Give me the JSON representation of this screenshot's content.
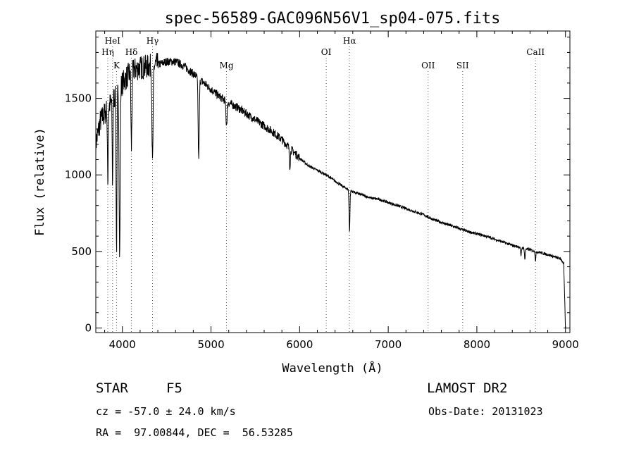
{
  "chart_data": {
    "type": "line",
    "title": "spec-56589-GAC096N56V1_sp04-075.fits",
    "xlabel": "Wavelength (Å)",
    "ylabel": "Flux (relative)",
    "xlim": [
      3700,
      9050
    ],
    "ylim": [
      -30,
      1940
    ],
    "x_ticks": [
      4000,
      5000,
      6000,
      7000,
      8000,
      9000
    ],
    "y_ticks": [
      0,
      500,
      1000,
      1500
    ],
    "continuum": [
      [
        3700,
        1200
      ],
      [
        3750,
        1350
      ],
      [
        3800,
        1400
      ],
      [
        3850,
        1450
      ],
      [
        3900,
        1500
      ],
      [
        4000,
        1600
      ],
      [
        4100,
        1680
      ],
      [
        4200,
        1700
      ],
      [
        4300,
        1710
      ],
      [
        4400,
        1720
      ],
      [
        4500,
        1740
      ],
      [
        4600,
        1740
      ],
      [
        4700,
        1710
      ],
      [
        4800,
        1660
      ],
      [
        4900,
        1610
      ],
      [
        5000,
        1560
      ],
      [
        5100,
        1510
      ],
      [
        5200,
        1470
      ],
      [
        5300,
        1440
      ],
      [
        5400,
        1400
      ],
      [
        5500,
        1360
      ],
      [
        5600,
        1320
      ],
      [
        5700,
        1280
      ],
      [
        5800,
        1230
      ],
      [
        5900,
        1170
      ],
      [
        6000,
        1110
      ],
      [
        6100,
        1060
      ],
      [
        6200,
        1030
      ],
      [
        6300,
        1000
      ],
      [
        6400,
        960
      ],
      [
        6500,
        920
      ],
      [
        6600,
        890
      ],
      [
        6700,
        870
      ],
      [
        6800,
        850
      ],
      [
        6900,
        840
      ],
      [
        7000,
        820
      ],
      [
        7100,
        800
      ],
      [
        7200,
        780
      ],
      [
        7300,
        760
      ],
      [
        7400,
        740
      ],
      [
        7500,
        710
      ],
      [
        7600,
        690
      ],
      [
        7700,
        670
      ],
      [
        7800,
        650
      ],
      [
        7900,
        630
      ],
      [
        8000,
        615
      ],
      [
        8100,
        600
      ],
      [
        8200,
        580
      ],
      [
        8300,
        560
      ],
      [
        8400,
        540
      ],
      [
        8500,
        525
      ],
      [
        8600,
        510
      ],
      [
        8700,
        495
      ],
      [
        8800,
        480
      ],
      [
        8900,
        460
      ],
      [
        8950,
        450
      ],
      [
        8980,
        420
      ],
      [
        9000,
        0
      ]
    ],
    "absorption_lines": [
      {
        "w": 3835,
        "depth": 500,
        "width": 6
      },
      {
        "w": 3889,
        "depth": 550,
        "width": 6
      },
      {
        "w": 3934,
        "depth": 1000,
        "width": 7
      },
      {
        "w": 3969,
        "depth": 1100,
        "width": 8
      },
      {
        "w": 4102,
        "depth": 500,
        "width": 8
      },
      {
        "w": 4340,
        "depth": 650,
        "width": 9
      },
      {
        "w": 4861,
        "depth": 520,
        "width": 9
      },
      {
        "w": 5175,
        "depth": 150,
        "width": 10
      },
      {
        "w": 5890,
        "depth": 120,
        "width": 8
      },
      {
        "w": 6563,
        "depth": 270,
        "width": 7
      },
      {
        "w": 8498,
        "depth": 60,
        "width": 6
      },
      {
        "w": 8542,
        "depth": 70,
        "width": 6
      },
      {
        "w": 8662,
        "depth": 60,
        "width": 6
      }
    ],
    "line_markers": [
      {
        "label": "Hη",
        "w": 3835,
        "row": 1
      },
      {
        "label": "HeI",
        "w": 3889,
        "row": 0
      },
      {
        "label": "K",
        "w": 3934,
        "row": 2
      },
      {
        "label": "Hδ",
        "w": 4102,
        "row": 1
      },
      {
        "label": "Hγ",
        "w": 4340,
        "row": 0
      },
      {
        "label": "Mg",
        "w": 5175,
        "row": 2
      },
      {
        "label": "OI",
        "w": 6300,
        "row": 1
      },
      {
        "label": "Hα",
        "w": 6563,
        "row": 0
      },
      {
        "label": "OII",
        "w": 7450,
        "row": 2
      },
      {
        "label": "SII",
        "w": 7840,
        "row": 2
      },
      {
        "label": "CaII",
        "w": 8662,
        "row": 1
      }
    ]
  },
  "info": {
    "class_label": "STAR",
    "subclass": "F5",
    "survey": "LAMOST DR2",
    "redshift": "cz = -57.0 ± 24.0 km/s",
    "obs_date": "Obs-Date: 20131023",
    "coords": "RA =  97.00844, DEC =  56.53285"
  }
}
